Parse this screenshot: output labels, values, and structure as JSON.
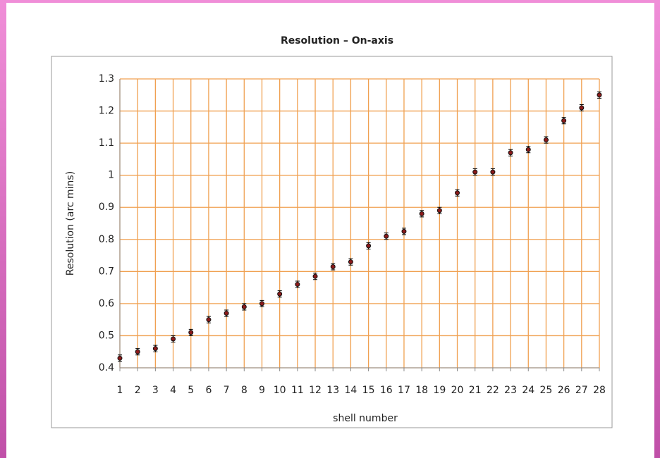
{
  "chart_data": {
    "type": "errorbar-scatter",
    "title": "Resolution – On-axis",
    "xlabel": "shell number",
    "ylabel": "Resolution (arc mins)",
    "x": [
      1,
      2,
      3,
      4,
      5,
      6,
      7,
      8,
      9,
      10,
      11,
      12,
      13,
      14,
      15,
      16,
      17,
      18,
      19,
      20,
      21,
      22,
      23,
      24,
      25,
      26,
      27,
      28
    ],
    "values": [
      0.43,
      0.45,
      0.46,
      0.49,
      0.51,
      0.55,
      0.57,
      0.59,
      0.6,
      0.63,
      0.66,
      0.685,
      0.715,
      0.73,
      0.78,
      0.81,
      0.825,
      0.88,
      0.89,
      0.945,
      1.01,
      1.01,
      1.07,
      1.08,
      1.11,
      1.17,
      1.21,
      1.25
    ],
    "errors": [
      0.01,
      0.01,
      0.01,
      0.01,
      0.01,
      0.01,
      0.01,
      0.01,
      0.01,
      0.01,
      0.01,
      0.01,
      0.01,
      0.01,
      0.01,
      0.01,
      0.01,
      0.01,
      0.01,
      0.01,
      0.01,
      0.01,
      0.01,
      0.01,
      0.01,
      0.01,
      0.01,
      0.01
    ],
    "color": "#8b1a1a",
    "grid_color": "#f0a050",
    "xlim": [
      1,
      28
    ],
    "xticks": [
      1,
      2,
      3,
      4,
      5,
      6,
      7,
      8,
      9,
      10,
      11,
      12,
      13,
      14,
      15,
      16,
      17,
      18,
      19,
      20,
      21,
      22,
      23,
      24,
      25,
      26,
      27,
      28
    ],
    "ylim": [
      0.4,
      1.3
    ],
    "yticks": [
      0.4,
      0.5,
      0.6,
      0.7,
      0.8,
      0.9,
      1,
      1.1,
      1.2,
      1.3
    ],
    "grid": true
  }
}
